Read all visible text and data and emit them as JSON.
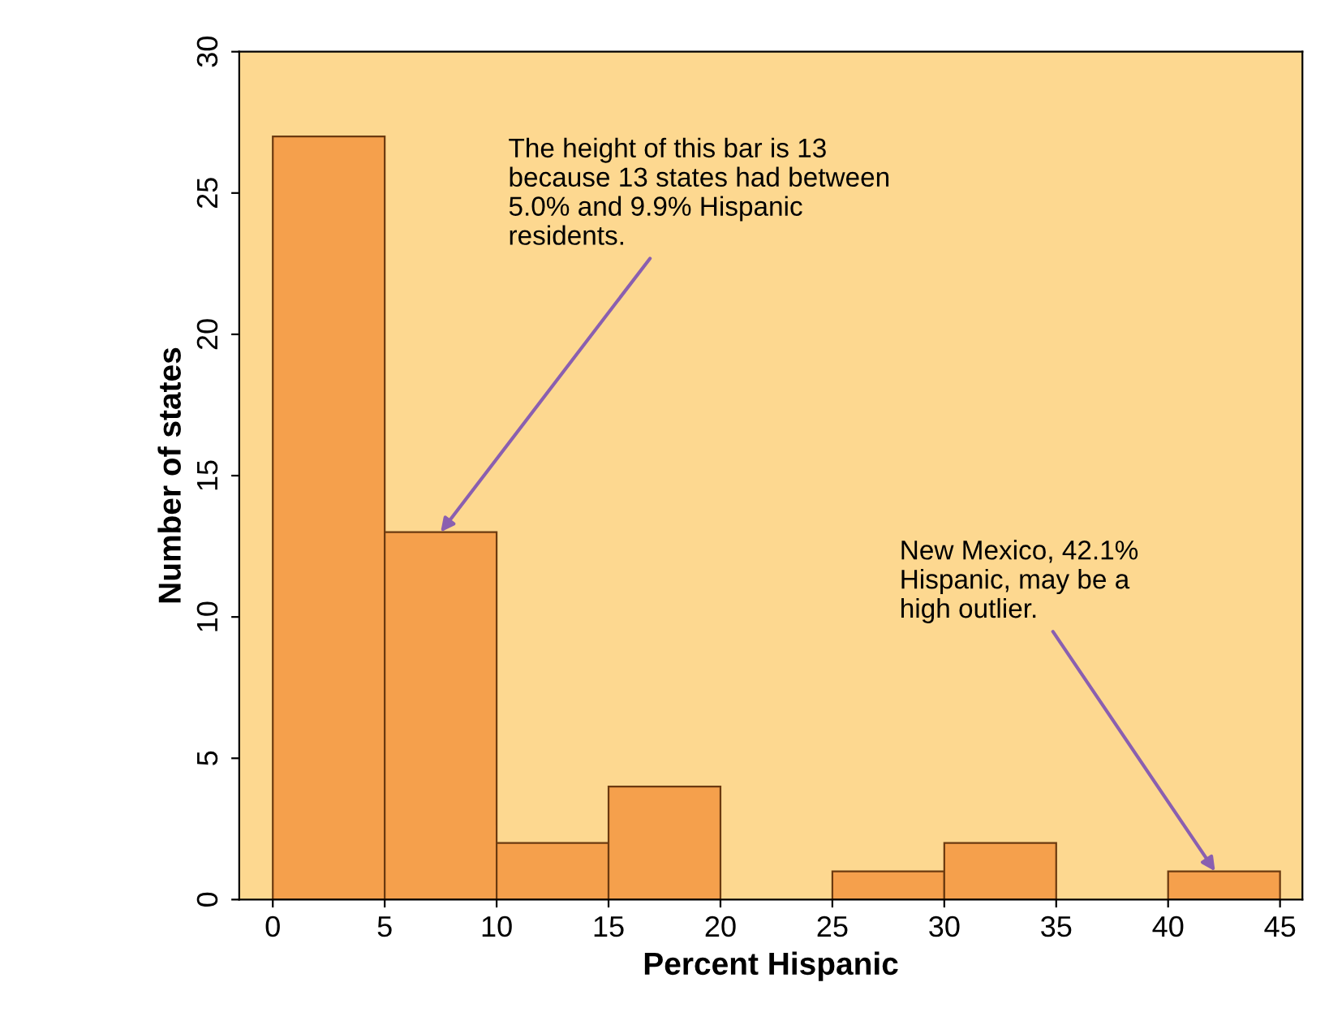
{
  "chart_data": {
    "type": "histogram",
    "xlabel": "Percent Hispanic",
    "ylabel": "Number of states",
    "bins": [
      0,
      5,
      10,
      15,
      20,
      25,
      30,
      35,
      40,
      45
    ],
    "values": [
      27,
      13,
      2,
      4,
      0,
      1,
      2,
      0,
      1
    ],
    "color": "#f5a04c",
    "xlim": [
      -1.5,
      46
    ],
    "ylim": [
      0,
      30
    ],
    "xticks": [
      0,
      5,
      10,
      15,
      20,
      25,
      30,
      35,
      40,
      45
    ],
    "yticks": [
      0,
      5,
      10,
      15,
      20,
      25,
      30
    ],
    "grid": false,
    "legend": false,
    "annotations": [
      {
        "text": "The height of this bar is 13\nbecause 13 states had between\n5.0% and 9.9% Hispanic\nresidents.",
        "x": 7.5,
        "y": 13
      },
      {
        "text": "New Mexico, 42.1%\nHispanic, may be a\nhigh outlier.",
        "x": 42.1,
        "y": 1
      }
    ]
  }
}
